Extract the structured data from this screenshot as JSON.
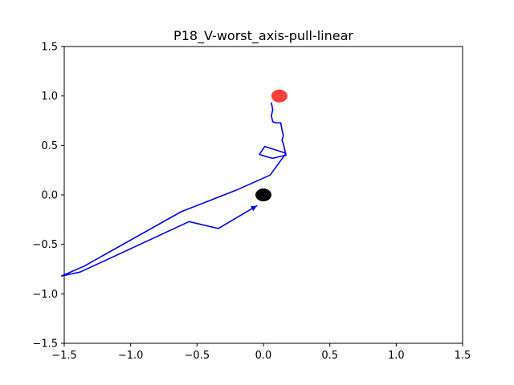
{
  "chart_data": {
    "type": "line",
    "title": "P18_V-worst_axis-pull-linear",
    "xlabel": "",
    "ylabel": "",
    "xlim": [
      -1.5,
      1.5
    ],
    "ylim": [
      -1.5,
      1.5
    ],
    "grid": false,
    "x_ticks": [
      -1.5,
      -1.0,
      -0.5,
      0.0,
      0.5,
      1.0,
      1.5
    ],
    "x_tick_labels": [
      "−1.5",
      "−1.0",
      "−0.5",
      "0.0",
      "0.5",
      "1.0",
      "1.5"
    ],
    "y_ticks": [
      -1.5,
      -1.0,
      -0.5,
      0.0,
      0.5,
      1.0,
      1.5
    ],
    "y_tick_labels": [
      "−1.5",
      "−1.0",
      "−0.5",
      "0.0",
      "0.5",
      "1.0",
      "1.5"
    ],
    "path": {
      "color": "#0000ff",
      "points": [
        [
          0.06,
          0.93
        ],
        [
          0.07,
          0.86
        ],
        [
          0.06,
          0.8
        ],
        [
          0.07,
          0.74
        ],
        [
          0.09,
          0.73
        ],
        [
          0.13,
          0.73
        ],
        [
          0.14,
          0.66
        ],
        [
          0.15,
          0.6
        ],
        [
          0.14,
          0.55
        ],
        [
          0.15,
          0.52
        ],
        [
          0.17,
          0.4
        ],
        [
          0.13,
          0.39
        ],
        [
          0.1,
          0.38
        ],
        [
          0.07,
          0.37
        ],
        [
          0.04,
          0.38
        ],
        [
          -0.01,
          0.4
        ],
        [
          -0.03,
          0.41
        ],
        [
          0.01,
          0.49
        ],
        [
          0.15,
          0.43
        ],
        [
          0.17,
          0.42
        ],
        [
          0.05,
          0.2
        ],
        [
          -0.2,
          0.05
        ],
        [
          -0.62,
          -0.17
        ],
        [
          -1.35,
          -0.72
        ],
        [
          -1.52,
          -0.82
        ],
        [
          -1.38,
          -0.78
        ],
        [
          -0.56,
          -0.27
        ],
        [
          -0.34,
          -0.34
        ],
        [
          -0.05,
          -0.11
        ]
      ]
    },
    "arrow_color": "#0000ff",
    "start_marker": {
      "x": 0.0,
      "y": 0.0,
      "color": "#000000"
    },
    "goal_marker": {
      "x": 0.12,
      "y": 1.0,
      "color": "#ff0000"
    }
  }
}
